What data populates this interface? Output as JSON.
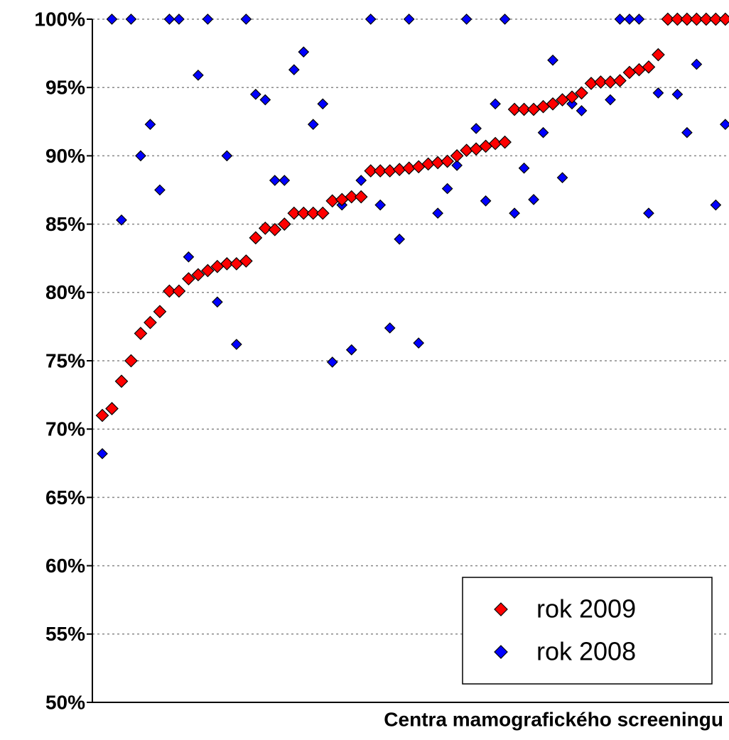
{
  "chart_data": {
    "type": "scatter",
    "x_label": "Centra mamografického screeningu",
    "categories": [
      null,
      null,
      null,
      null,
      null,
      null,
      null,
      null,
      null,
      null,
      null,
      null,
      null,
      null,
      null,
      null,
      null,
      null,
      null,
      null,
      null,
      null,
      null,
      null,
      null,
      null,
      null,
      null,
      null,
      null,
      null,
      null,
      null,
      null,
      null,
      null,
      null,
      null,
      null,
      null,
      null,
      null,
      null,
      null,
      null,
      null,
      null,
      null,
      null,
      null,
      null,
      null,
      null,
      null,
      null,
      null,
      null,
      null,
      null,
      null,
      null,
      null,
      null,
      null,
      null,
      null
    ],
    "series": [
      {
        "name": "rok 2008",
        "color": "#0000ff",
        "values": [
          68.2,
          100,
          85.3,
          100,
          90.0,
          92.3,
          87.5,
          100,
          100,
          82.6,
          95.9,
          100,
          79.3,
          90.0,
          76.2,
          100,
          94.5,
          94.1,
          88.2,
          88.2,
          96.3,
          97.6,
          92.3,
          93.8,
          74.9,
          86.4,
          75.8,
          88.2,
          100,
          86.4,
          77.4,
          83.9,
          100,
          76.3,
          null,
          85.8,
          87.6,
          89.3,
          100,
          92.0,
          86.7,
          93.8,
          100,
          85.8,
          89.1,
          86.8,
          91.7,
          97.0,
          88.4,
          93.8,
          93.3,
          null,
          null,
          94.1,
          100,
          100,
          100,
          85.8,
          94.6,
          null,
          94.5,
          91.7,
          96.7,
          null,
          86.4,
          92.3
        ]
      },
      {
        "name": "rok 2009",
        "color": "#ff0000",
        "values": [
          71.0,
          71.5,
          73.5,
          75.0,
          77.0,
          77.8,
          78.6,
          80.1,
          80.1,
          81.0,
          81.3,
          81.6,
          81.9,
          82.1,
          82.1,
          82.3,
          84.0,
          84.7,
          84.6,
          85.0,
          85.8,
          85.8,
          85.8,
          85.8,
          86.7,
          86.8,
          87.0,
          87.0,
          88.9,
          88.9,
          88.9,
          89.0,
          89.1,
          89.2,
          89.4,
          89.5,
          89.6,
          90.0,
          90.4,
          90.5,
          90.7,
          90.9,
          91.0,
          93.4,
          93.4,
          93.4,
          93.6,
          93.8,
          94.1,
          94.3,
          94.6,
          95.3,
          95.4,
          95.4,
          95.5,
          96.1,
          96.3,
          96.5,
          97.4,
          100,
          100,
          100,
          100,
          100,
          100,
          100
        ]
      }
    ],
    "ylim": [
      50,
      100
    ],
    "yticks": [
      {
        "value": 50,
        "label": "50%"
      },
      {
        "value": 55,
        "label": "55%"
      },
      {
        "value": 60,
        "label": "60%"
      },
      {
        "value": 65,
        "label": "65%"
      },
      {
        "value": 70,
        "label": "70%"
      },
      {
        "value": 75,
        "label": "75%"
      },
      {
        "value": 80,
        "label": "80%"
      },
      {
        "value": 85,
        "label": "85%"
      },
      {
        "value": 90,
        "label": "90%"
      },
      {
        "value": 95,
        "label": "95%"
      },
      {
        "value": 100,
        "label": "100%"
      }
    ],
    "grid": true,
    "legend": "lower right"
  }
}
